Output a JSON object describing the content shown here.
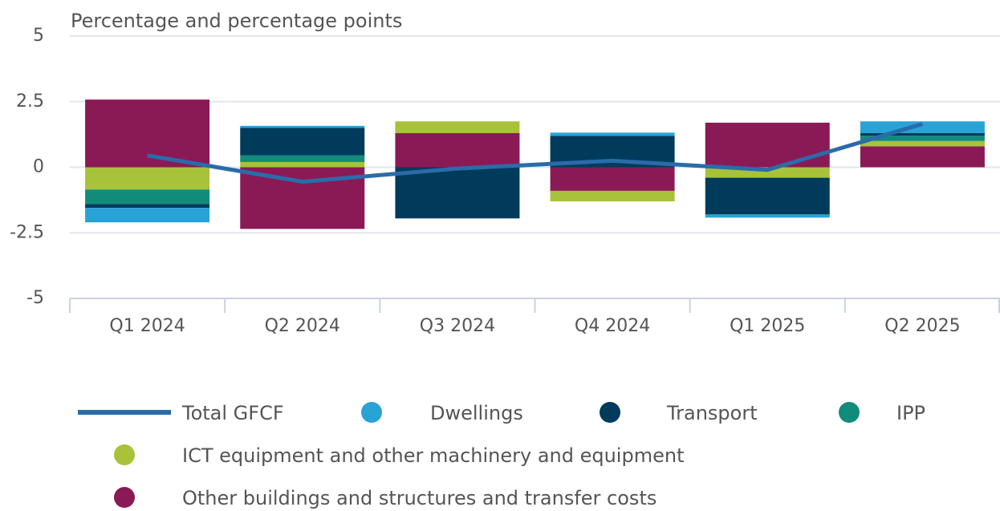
{
  "chart_data": {
    "type": "bar",
    "title": "Percentage and percentage points",
    "categories": [
      "Q1 2024",
      "Q2 2024",
      "Q3 2024",
      "Q4 2024",
      "Q1 2025",
      "Q2 2025"
    ],
    "series": [
      {
        "name": "Total GFCF",
        "type": "line",
        "color": "#2a6ca8",
        "values": [
          0.45,
          -0.55,
          -0.05,
          0.25,
          -0.1,
          1.65
        ]
      },
      {
        "name": "Dwellings",
        "color": "#29a3d6",
        "values": [
          -0.55,
          0.08,
          0,
          0.12,
          -0.12,
          0.45
        ]
      },
      {
        "name": "Transport",
        "color": "#003b5c",
        "values": [
          -0.15,
          1.05,
          -1.95,
          1.2,
          -1.4,
          0.1
        ]
      },
      {
        "name": "IPP",
        "color": "#118c7b",
        "values": [
          -0.55,
          0.25,
          0,
          0,
          0,
          0.2
        ]
      },
      {
        "name": "ICT equipment and other machinery and equipment",
        "color": "#a8c23a",
        "values": [
          -0.85,
          0.2,
          0.45,
          -0.4,
          -0.4,
          0.2
        ]
      },
      {
        "name": "Other buildings and structures and transfer costs",
        "color": "#8a1a56",
        "values": [
          2.58,
          -2.35,
          1.3,
          -0.9,
          1.7,
          0.8
        ]
      }
    ],
    "ylim": [
      -5,
      5
    ],
    "yticks": [
      -5,
      -2.5,
      0,
      2.5,
      5
    ],
    "grid": true
  }
}
